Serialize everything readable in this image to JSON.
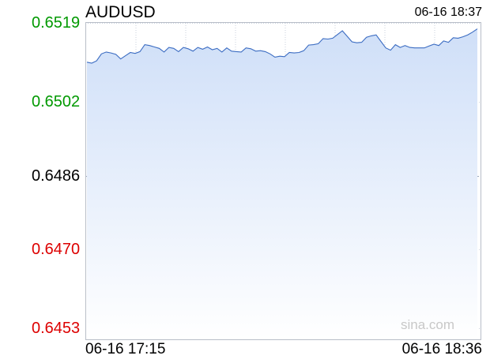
{
  "header": {
    "symbol": "AUDUSD",
    "timestamp": "06-16 18:37"
  },
  "watermark": "sina.com",
  "colors": {
    "up": "#009900",
    "flat": "#000000",
    "down": "#dd0000",
    "line": "#3b6cc2",
    "fill_top": "#cfdff8",
    "grid": "#c8d0dc",
    "reference_line": "#9aa6bb"
  },
  "chart_data": {
    "type": "area",
    "title": "AUDUSD",
    "ylim": [
      0.6453,
      0.6519
    ],
    "reference_value": 0.6486,
    "y_ticks": [
      {
        "label": "0.6519",
        "value": 0.6519,
        "trend": "up"
      },
      {
        "label": "0.6502",
        "value": 0.6502,
        "trend": "up"
      },
      {
        "label": "0.6486",
        "value": 0.6486,
        "trend": "flat"
      },
      {
        "label": "0.6470",
        "value": 0.647,
        "trend": "down"
      },
      {
        "label": "0.6453",
        "value": 0.6453,
        "trend": "down"
      }
    ],
    "x_ticks": [
      "06-16 17:15",
      "06-16 18:36"
    ],
    "grid": true,
    "series": [
      {
        "values": [
          0.65105,
          0.65103,
          0.65108,
          0.65123,
          0.65127,
          0.65125,
          0.65122,
          0.65112,
          0.65119,
          0.65126,
          0.65124,
          0.65128,
          0.65143,
          0.65141,
          0.65138,
          0.65135,
          0.65127,
          0.65137,
          0.65135,
          0.65128,
          0.65137,
          0.65134,
          0.65129,
          0.65137,
          0.65133,
          0.65138,
          0.65132,
          0.65135,
          0.65127,
          0.65136,
          0.65129,
          0.65128,
          0.65127,
          0.65136,
          0.65134,
          0.65129,
          0.6513,
          0.65128,
          0.65123,
          0.65116,
          0.65118,
          0.65117,
          0.65126,
          0.65125,
          0.65126,
          0.6513,
          0.65142,
          0.65143,
          0.65145,
          0.65156,
          0.65155,
          0.65157,
          0.65165,
          0.65173,
          0.65161,
          0.65149,
          0.65147,
          0.65148,
          0.65159,
          0.65162,
          0.65164,
          0.6515,
          0.65136,
          0.65131,
          0.65143,
          0.65137,
          0.65141,
          0.65137,
          0.65136,
          0.65136,
          0.65136,
          0.6514,
          0.65144,
          0.65141,
          0.65151,
          0.65148,
          0.65158,
          0.65157,
          0.6516,
          0.65164,
          0.6517,
          0.65177
        ]
      }
    ]
  }
}
